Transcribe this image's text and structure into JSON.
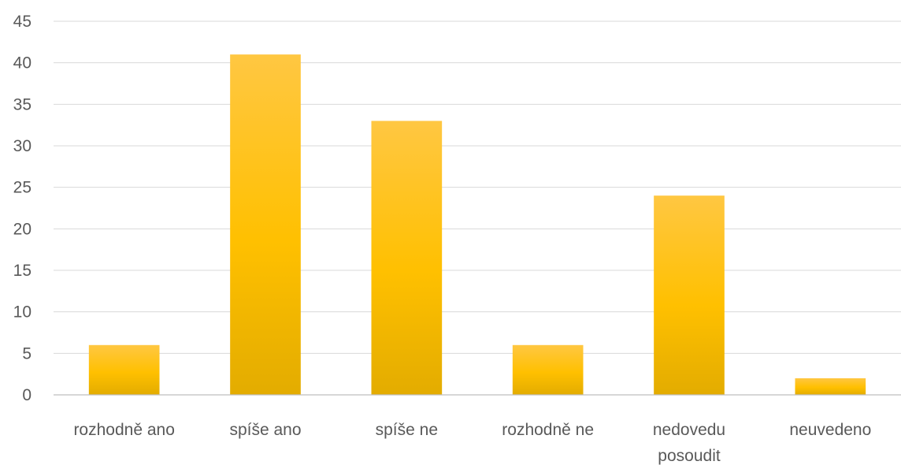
{
  "chart_data": {
    "type": "bar",
    "categories": [
      [
        "rozhodně ano"
      ],
      [
        "spíše ano"
      ],
      [
        "spíše ne"
      ],
      [
        "rozhodně ne"
      ],
      [
        "nedovedu",
        "posoudit"
      ],
      [
        "neuvedeno"
      ]
    ],
    "values": [
      6,
      41,
      33,
      6,
      24,
      2
    ],
    "ylim": [
      0,
      45
    ],
    "yticks": [
      0,
      5,
      10,
      15,
      20,
      25,
      30,
      35,
      40,
      45
    ],
    "grid": true,
    "legend": "none",
    "colors": {
      "bar_top": "#FFC742",
      "bar_mid": "#FFC000",
      "bar_bottom": "#E3AC00"
    }
  }
}
